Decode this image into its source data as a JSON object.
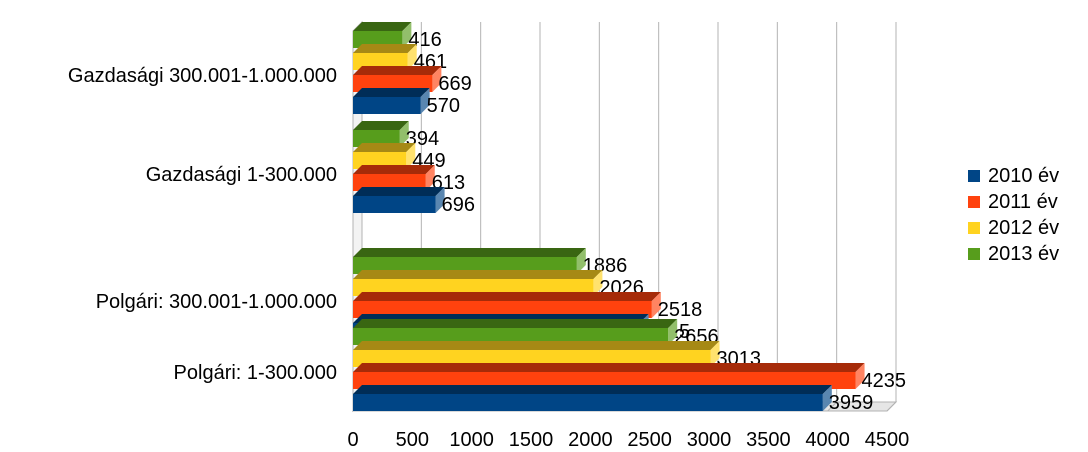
{
  "chart_data": {
    "type": "bar",
    "orientation": "horizontal",
    "style": "3d",
    "categories": [
      "Gazdasági 300.001-1.000.000",
      "Gazdasági 1-300.000",
      "Polgári: 300.001-1.000.000",
      "Polgári: 1-300.000"
    ],
    "series": [
      {
        "name": "2010 év",
        "color": "#004586",
        "values": [
          570,
          696,
          2415,
          3959
        ]
      },
      {
        "name": "2011 év",
        "color": "#FF420E",
        "values": [
          669,
          613,
          2518,
          4235
        ]
      },
      {
        "name": "2012 év",
        "color": "#FFD320",
        "values": [
          461,
          449,
          2026,
          3013
        ]
      },
      {
        "name": "2013 év",
        "color": "#579D1C",
        "values": [
          416,
          394,
          1886,
          2656
        ]
      }
    ],
    "xticks": [
      "0",
      "500",
      "1000",
      "1500",
      "2000",
      "2500",
      "3000",
      "3500",
      "4000",
      "4500"
    ],
    "xlim": [
      0,
      4500
    ],
    "grid": true,
    "legend_position": "right"
  }
}
